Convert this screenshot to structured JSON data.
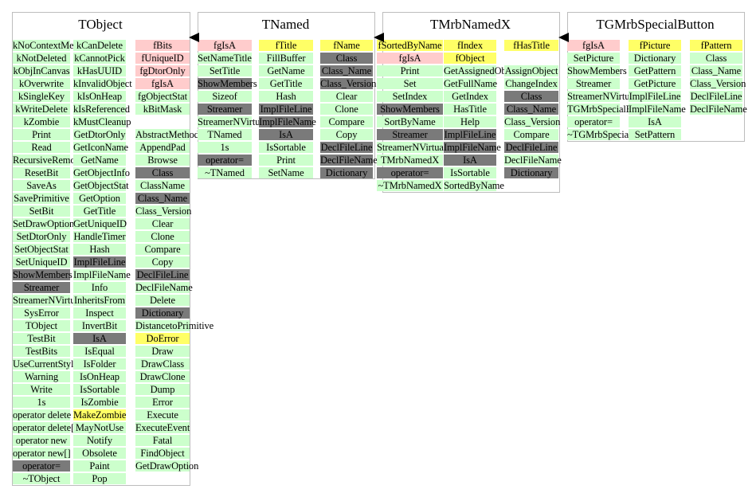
{
  "legend_colors": {
    "g": "#ccffcc",
    "d": "#7a7a7a",
    "p": "#ffcccc",
    "y": "#ffff66"
  },
  "classes": [
    {
      "id": "tobject",
      "title": "TObject",
      "columns": [
        [
          [
            "kNoContextMenu",
            "g"
          ],
          [
            "kNotDeleted",
            "g"
          ],
          [
            "kObjInCanvas",
            "g"
          ],
          [
            "kOverwrite",
            "g"
          ],
          [
            "kSingleKey",
            "g"
          ],
          [
            "kWriteDelete",
            "g"
          ],
          [
            "kZombie",
            "g"
          ],
          [
            "Print",
            "g"
          ],
          [
            "Read",
            "g"
          ],
          [
            "RecursiveRemove",
            "g"
          ],
          [
            "ResetBit",
            "g"
          ],
          [
            "SaveAs",
            "g"
          ],
          [
            "SavePrimitive",
            "g"
          ],
          [
            "SetBit",
            "g"
          ],
          [
            "SetDrawOption",
            "g"
          ],
          [
            "SetDtorOnly",
            "g"
          ],
          [
            "SetObjectStat",
            "g"
          ],
          [
            "SetUniqueID",
            "g"
          ],
          [
            "ShowMembers",
            "d"
          ],
          [
            "Streamer",
            "d"
          ],
          [
            "StreamerNVirtual",
            "g"
          ],
          [
            "SysError",
            "g"
          ],
          [
            "TObject",
            "g"
          ],
          [
            "TestBit",
            "g"
          ],
          [
            "TestBits",
            "g"
          ],
          [
            "UseCurrentStyle",
            "g"
          ],
          [
            "Warning",
            "g"
          ],
          [
            "Write",
            "g"
          ],
          [
            "1s",
            "g"
          ],
          [
            "operator delete",
            "g"
          ],
          [
            "operator delete[]",
            "g"
          ],
          [
            "operator new",
            "g"
          ],
          [
            "operator new[]",
            "g"
          ],
          [
            "operator=",
            "d"
          ],
          [
            "~TObject",
            "g"
          ]
        ],
        [
          [
            "kCanDelete",
            "g"
          ],
          [
            "kCannotPick",
            "g"
          ],
          [
            "kHasUUID",
            "g"
          ],
          [
            "kInvalidObject",
            "g"
          ],
          [
            "kIsOnHeap",
            "g"
          ],
          [
            "kIsReferenced",
            "g"
          ],
          [
            "kMustCleanup",
            "g"
          ],
          [
            "GetDtorOnly",
            "g"
          ],
          [
            "GetIconName",
            "g"
          ],
          [
            "GetName",
            "g"
          ],
          [
            "GetObjectInfo",
            "g"
          ],
          [
            "GetObjectStat",
            "g"
          ],
          [
            "GetOption",
            "g"
          ],
          [
            "GetTitle",
            "g"
          ],
          [
            "GetUniqueID",
            "g"
          ],
          [
            "HandleTimer",
            "g"
          ],
          [
            "Hash",
            "g"
          ],
          [
            "ImplFileLine",
            "d"
          ],
          [
            "ImplFileName",
            "g"
          ],
          [
            "Info",
            "g"
          ],
          [
            "InheritsFrom",
            "g"
          ],
          [
            "Inspect",
            "g"
          ],
          [
            "InvertBit",
            "g"
          ],
          [
            "IsA",
            "d"
          ],
          [
            "IsEqual",
            "g"
          ],
          [
            "IsFolder",
            "g"
          ],
          [
            "IsOnHeap",
            "g"
          ],
          [
            "IsSortable",
            "g"
          ],
          [
            "IsZombie",
            "g"
          ],
          [
            "MakeZombie",
            "y"
          ],
          [
            "MayNotUse",
            "g"
          ],
          [
            "Notify",
            "g"
          ],
          [
            "Obsolete",
            "g"
          ],
          [
            "Paint",
            "g"
          ],
          [
            "Pop",
            "g"
          ]
        ],
        [
          [
            "fBits",
            "p"
          ],
          [
            "fUniqueID",
            "p"
          ],
          [
            "fgDtorOnly",
            "p"
          ],
          [
            "fgIsA",
            "p"
          ],
          [
            "fgObjectStat",
            "g"
          ],
          [
            "kBitMask",
            "g"
          ],
          [
            "",
            "n"
          ],
          [
            "AbstractMethod",
            "g"
          ],
          [
            "AppendPad",
            "g"
          ],
          [
            "Browse",
            "g"
          ],
          [
            "Class",
            "d"
          ],
          [
            "ClassName",
            "g"
          ],
          [
            "Class_Name",
            "d"
          ],
          [
            "Class_Version",
            "g"
          ],
          [
            "Clear",
            "g"
          ],
          [
            "Clone",
            "g"
          ],
          [
            "Compare",
            "g"
          ],
          [
            "Copy",
            "g"
          ],
          [
            "DeclFileLine",
            "d"
          ],
          [
            "DeclFileName",
            "g"
          ],
          [
            "Delete",
            "g"
          ],
          [
            "Dictionary",
            "d"
          ],
          [
            "DistancetoPrimitive",
            "g"
          ],
          [
            "DoError",
            "y"
          ],
          [
            "Draw",
            "g"
          ],
          [
            "DrawClass",
            "g"
          ],
          [
            "DrawClone",
            "g"
          ],
          [
            "Dump",
            "g"
          ],
          [
            "Error",
            "g"
          ],
          [
            "Execute",
            "g"
          ],
          [
            "ExecuteEvent",
            "g"
          ],
          [
            "Fatal",
            "g"
          ],
          [
            "FindObject",
            "g"
          ],
          [
            "GetDrawOption",
            "g"
          ]
        ]
      ]
    },
    {
      "id": "tnamed",
      "title": "TNamed",
      "columns": [
        [
          [
            "fgIsA",
            "p"
          ],
          [
            "SetNameTitle",
            "g"
          ],
          [
            "SetTitle",
            "g"
          ],
          [
            "ShowMembers",
            "d"
          ],
          [
            "Sizeof",
            "g"
          ],
          [
            "Streamer",
            "d"
          ],
          [
            "StreamerNVirtual",
            "g"
          ],
          [
            "TNamed",
            "g"
          ],
          [
            "1s",
            "g"
          ],
          [
            "operator=",
            "d"
          ],
          [
            "~TNamed",
            "g"
          ]
        ],
        [
          [
            "fTitle",
            "y"
          ],
          [
            "FillBuffer",
            "g"
          ],
          [
            "GetName",
            "g"
          ],
          [
            "GetTitle",
            "g"
          ],
          [
            "Hash",
            "g"
          ],
          [
            "ImplFileLine",
            "d"
          ],
          [
            "ImplFileName",
            "d"
          ],
          [
            "IsA",
            "d"
          ],
          [
            "IsSortable",
            "g"
          ],
          [
            "Print",
            "g"
          ],
          [
            "SetName",
            "g"
          ]
        ],
        [
          [
            "fName",
            "y"
          ],
          [
            "Class",
            "d"
          ],
          [
            "Class_Name",
            "d"
          ],
          [
            "Class_Version",
            "d"
          ],
          [
            "Clear",
            "g"
          ],
          [
            "Clone",
            "g"
          ],
          [
            "Compare",
            "g"
          ],
          [
            "Copy",
            "g"
          ],
          [
            "DeclFileLine",
            "d"
          ],
          [
            "DeclFileName",
            "d"
          ],
          [
            "Dictionary",
            "d"
          ]
        ]
      ]
    },
    {
      "id": "tmrbnamedx",
      "title": "TMrbNamedX",
      "columns": [
        [
          [
            "fSortedByName",
            "y"
          ],
          [
            "fgIsA",
            "p"
          ],
          [
            "Print",
            "g"
          ],
          [
            "Set",
            "g"
          ],
          [
            "SetIndex",
            "g"
          ],
          [
            "ShowMembers",
            "d"
          ],
          [
            "SortByName",
            "g"
          ],
          [
            "Streamer",
            "d"
          ],
          [
            "StreamerNVirtual",
            "g"
          ],
          [
            "TMrbNamedX",
            "g"
          ],
          [
            "operator=",
            "d"
          ],
          [
            "~TMrbNamedX",
            "g"
          ]
        ],
        [
          [
            "fIndex",
            "y"
          ],
          [
            "fObject",
            "y"
          ],
          [
            "GetAssignedObject",
            "g"
          ],
          [
            "GetFullName",
            "g"
          ],
          [
            "GetIndex",
            "g"
          ],
          [
            "HasTitle",
            "g"
          ],
          [
            "Help",
            "g"
          ],
          [
            "ImplFileLine",
            "d"
          ],
          [
            "ImplFileName",
            "d"
          ],
          [
            "IsA",
            "d"
          ],
          [
            "IsSortable",
            "g"
          ],
          [
            "SortedByName",
            "g"
          ]
        ],
        [
          [
            "fHasTitle",
            "y"
          ],
          [
            "",
            "n"
          ],
          [
            "AssignObject",
            "g"
          ],
          [
            "ChangeIndex",
            "g"
          ],
          [
            "Class",
            "d"
          ],
          [
            "Class_Name",
            "d"
          ],
          [
            "Class_Version",
            "g"
          ],
          [
            "Compare",
            "g"
          ],
          [
            "DeclFileLine",
            "d"
          ],
          [
            "DeclFileName",
            "g"
          ],
          [
            "Dictionary",
            "d"
          ]
        ]
      ]
    },
    {
      "id": "tgmrbspecialbutton",
      "title": "TGMrbSpecialButton",
      "columns": [
        [
          [
            "fgIsA",
            "p"
          ],
          [
            "SetPicture",
            "g"
          ],
          [
            "ShowMembers",
            "g"
          ],
          [
            "Streamer",
            "g"
          ],
          [
            "StreamerNVirtual",
            "g"
          ],
          [
            "TGMrbSpecialButton",
            "g"
          ],
          [
            "operator=",
            "g"
          ],
          [
            "~TGMrbSpecialButton",
            "g"
          ]
        ],
        [
          [
            "fPicture",
            "y"
          ],
          [
            "Dictionary",
            "g"
          ],
          [
            "GetPattern",
            "g"
          ],
          [
            "GetPicture",
            "g"
          ],
          [
            "ImplFileLine",
            "g"
          ],
          [
            "ImplFileName",
            "g"
          ],
          [
            "IsA",
            "g"
          ],
          [
            "SetPattern",
            "g"
          ]
        ],
        [
          [
            "fPattern",
            "y"
          ],
          [
            "Class",
            "g"
          ],
          [
            "Class_Name",
            "g"
          ],
          [
            "Class_Version",
            "g"
          ],
          [
            "DeclFileLine",
            "g"
          ],
          [
            "DeclFileName",
            "g"
          ]
        ]
      ]
    }
  ]
}
